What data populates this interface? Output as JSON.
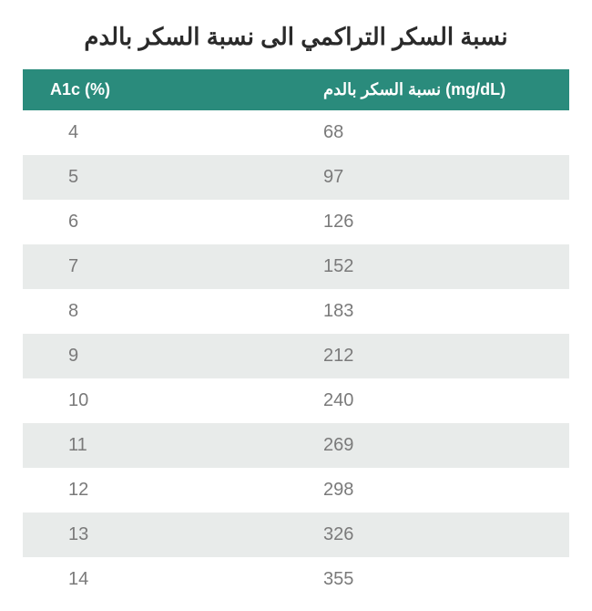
{
  "title": "نسبة السكر التراكمي الى نسبة السكر بالدم",
  "table": {
    "type": "table",
    "header_bg_color": "#2a8b7c",
    "header_text_color": "#ffffff",
    "row_even_bg": "#e8ebea",
    "row_odd_bg": "#ffffff",
    "cell_text_color": "#7a7a7a",
    "title_fontsize": 26,
    "header_fontsize": 18,
    "cell_fontsize": 20,
    "columns": [
      {
        "label": "A1c (%)",
        "align": "left"
      },
      {
        "label": "نسبة السكر بالدم  (mg/dL)",
        "align": "left"
      }
    ],
    "rows": [
      {
        "a1c": "4",
        "glucose": "68"
      },
      {
        "a1c": "5",
        "glucose": "97"
      },
      {
        "a1c": "6",
        "glucose": "126"
      },
      {
        "a1c": "7",
        "glucose": "152"
      },
      {
        "a1c": "8",
        "glucose": "183"
      },
      {
        "a1c": "9",
        "glucose": "212"
      },
      {
        "a1c": "10",
        "glucose": "240"
      },
      {
        "a1c": "11",
        "glucose": "269"
      },
      {
        "a1c": "12",
        "glucose": "298"
      },
      {
        "a1c": "13",
        "glucose": "326"
      },
      {
        "a1c": "14",
        "glucose": "355"
      }
    ]
  }
}
